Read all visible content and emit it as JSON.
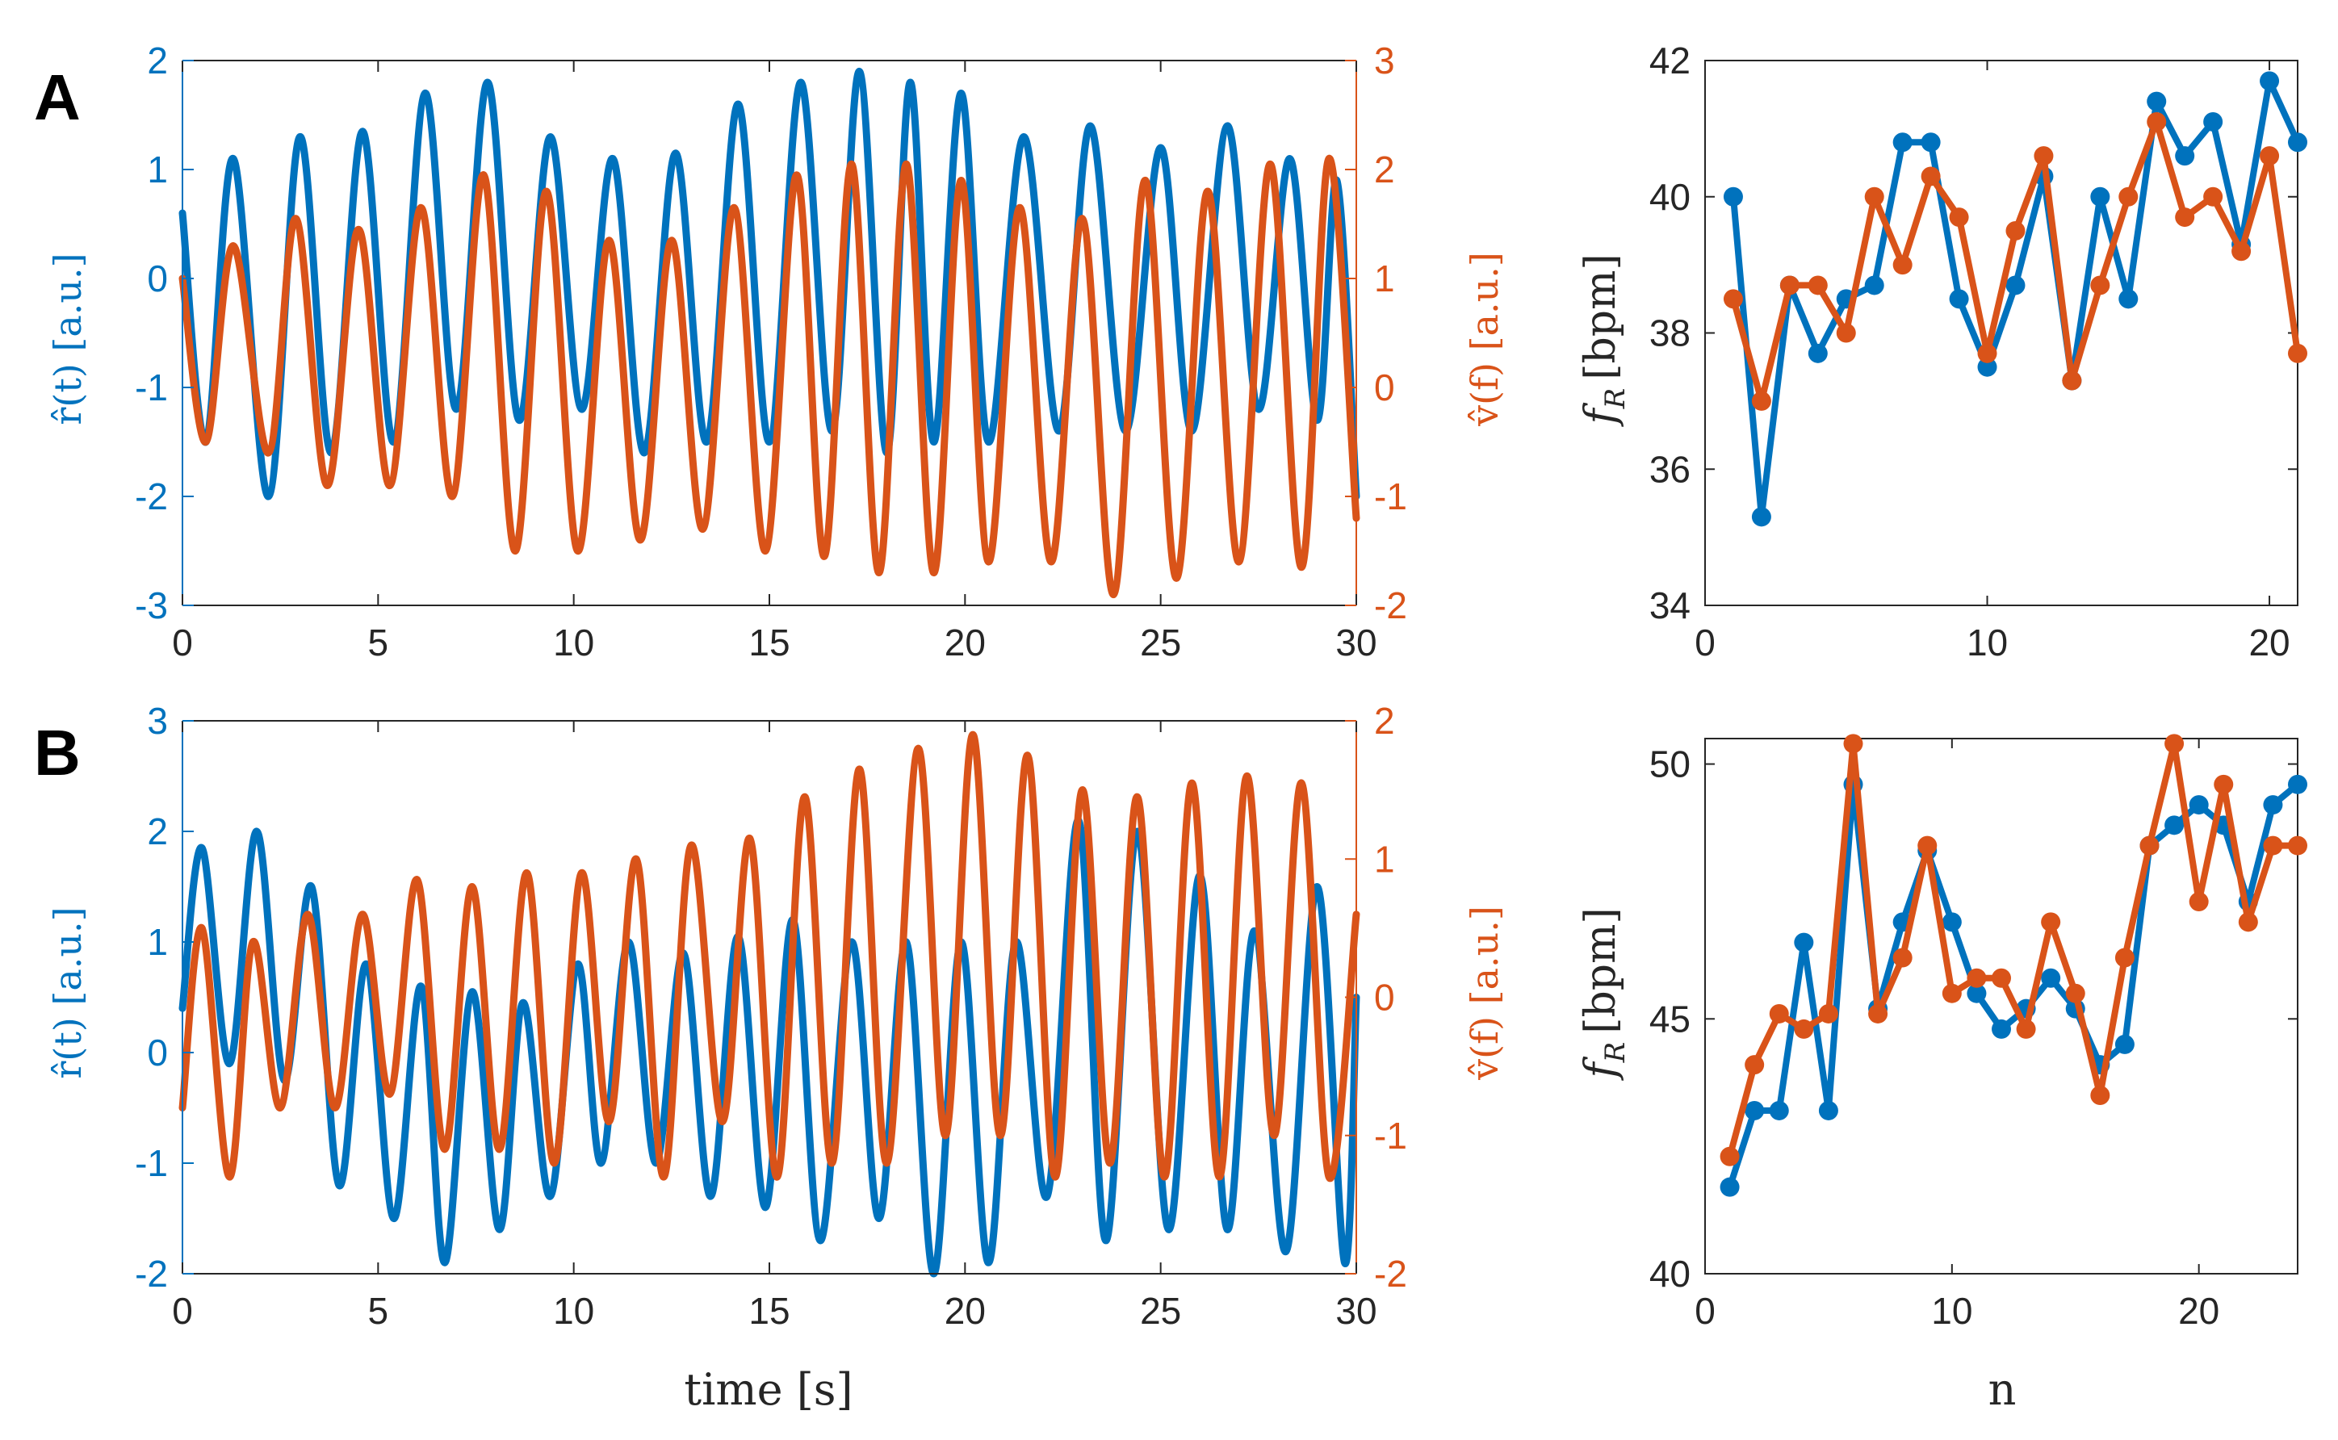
{
  "figure": {
    "panel_labels": [
      "A",
      "B"
    ],
    "xlabel_time": "time [s]",
    "xlabel_n": "n",
    "ylabel_r": "r̂(t) [a.u.]",
    "ylabel_v": "v̂(f) [a.u.]",
    "ylabel_fr": "f_R [bpm]",
    "ylabel_fr_main": "f",
    "ylabel_fr_sub": "R",
    "ylabel_fr_unit": "[bpm]",
    "colors": {
      "blue": "#0072BD",
      "orange": "#D95319",
      "axis": "#262626"
    }
  },
  "chart_data": [
    {
      "id": "A-time",
      "type": "line",
      "x_range": [
        0,
        30
      ],
      "xticks": [
        0,
        5,
        10,
        15,
        20,
        25,
        30
      ],
      "xlabel": "",
      "y_left": {
        "label": "r̂(t) [a.u.]",
        "range": [
          -3,
          2
        ],
        "ticks": [
          -3,
          -2,
          -1,
          0,
          1,
          2
        ]
      },
      "y_right": {
        "label": "v̂(f) [a.u.]",
        "range": [
          -2,
          3
        ],
        "ticks": [
          -2,
          -1,
          0,
          1,
          2,
          3
        ]
      },
      "series": [
        {
          "name": "r(t)",
          "axis": "left",
          "color": "#0072BD",
          "x": [
            0,
            0.6,
            1.3,
            2.2,
            3.0,
            3.8,
            4.6,
            5.4,
            6.2,
            7.0,
            7.8,
            8.6,
            9.4,
            10.2,
            11.0,
            11.8,
            12.6,
            13.4,
            14.2,
            15.0,
            15.8,
            16.6,
            17.3,
            18.0,
            18.6,
            19.2,
            19.9,
            20.6,
            21.5,
            22.4,
            23.2,
            24.1,
            25.0,
            25.8,
            26.7,
            27.5,
            28.3,
            29.0,
            29.5,
            30.0
          ],
          "values": [
            0.6,
            -1.5,
            1.1,
            -2.0,
            1.3,
            -1.6,
            1.35,
            -1.5,
            1.7,
            -1.2,
            1.8,
            -1.3,
            1.3,
            -1.2,
            1.1,
            -1.6,
            1.15,
            -1.5,
            1.6,
            -1.5,
            1.8,
            -1.4,
            1.9,
            -1.6,
            1.8,
            -1.5,
            1.7,
            -1.5,
            1.3,
            -1.4,
            1.4,
            -1.4,
            1.2,
            -1.4,
            1.4,
            -1.2,
            1.1,
            -1.3,
            0.9,
            -2.0
          ]
        },
        {
          "name": "v(f)",
          "axis": "right",
          "color": "#D95319",
          "x": [
            0,
            0.6,
            1.3,
            2.2,
            2.9,
            3.7,
            4.5,
            5.3,
            6.1,
            6.9,
            7.7,
            8.5,
            9.3,
            10.1,
            10.9,
            11.7,
            12.5,
            13.3,
            14.1,
            14.9,
            15.7,
            16.4,
            17.1,
            17.8,
            18.5,
            19.2,
            19.9,
            20.6,
            21.4,
            22.2,
            23.0,
            23.8,
            24.6,
            25.4,
            26.2,
            27.0,
            27.8,
            28.6,
            29.3,
            30.0
          ],
          "values": [
            1.0,
            -0.5,
            1.3,
            -0.6,
            1.55,
            -0.9,
            1.45,
            -0.9,
            1.65,
            -1.0,
            1.95,
            -1.5,
            1.8,
            -1.5,
            1.35,
            -1.4,
            1.35,
            -1.3,
            1.65,
            -1.5,
            1.95,
            -1.55,
            2.05,
            -1.7,
            2.05,
            -1.7,
            1.9,
            -1.6,
            1.65,
            -1.6,
            1.55,
            -1.9,
            1.9,
            -1.75,
            1.8,
            -1.6,
            2.05,
            -1.65,
            2.1,
            -1.2
          ]
        }
      ]
    },
    {
      "id": "A-n",
      "type": "line",
      "x_range": [
        0,
        21
      ],
      "xticks": [
        0,
        10,
        20
      ],
      "xlabel": "",
      "y": {
        "label": "f_R [bpm]",
        "range": [
          34,
          42
        ],
        "ticks": [
          34,
          36,
          38,
          40,
          42
        ]
      },
      "series": [
        {
          "name": "blue",
          "color": "#0072BD",
          "x": [
            1,
            2,
            3,
            4,
            5,
            6,
            7,
            8,
            9,
            10,
            11,
            12,
            13,
            14,
            15,
            16,
            17,
            18,
            19,
            20,
            21
          ],
          "values": [
            40.0,
            35.3,
            38.7,
            37.7,
            38.5,
            38.7,
            40.8,
            40.8,
            38.5,
            37.5,
            38.7,
            40.3,
            37.3,
            40.0,
            38.5,
            41.4,
            40.6,
            41.1,
            39.3,
            41.7,
            40.8
          ]
        },
        {
          "name": "orange",
          "color": "#D95319",
          "x": [
            1,
            2,
            3,
            4,
            5,
            6,
            7,
            8,
            9,
            10,
            11,
            12,
            13,
            14,
            15,
            16,
            17,
            18,
            19,
            20,
            21
          ],
          "values": [
            38.5,
            37.0,
            38.7,
            38.7,
            38.0,
            40.0,
            39.0,
            40.3,
            39.7,
            37.7,
            39.5,
            40.6,
            37.3,
            38.7,
            40.0,
            41.1,
            39.7,
            40.0,
            39.2,
            40.6,
            37.7
          ]
        }
      ]
    },
    {
      "id": "B-time",
      "type": "line",
      "x_range": [
        0,
        30
      ],
      "xticks": [
        0,
        5,
        10,
        15,
        20,
        25,
        30
      ],
      "xlabel": "time [s]",
      "y_left": {
        "label": "r̂(t) [a.u.]",
        "range": [
          -2,
          3
        ],
        "ticks": [
          -2,
          -1,
          0,
          1,
          2,
          3
        ]
      },
      "y_right": {
        "label": "v̂(f) [a.u.]",
        "range": [
          -2,
          2
        ],
        "ticks": [
          -2,
          -1,
          0,
          1,
          2
        ]
      },
      "series": [
        {
          "name": "r(t)",
          "axis": "left",
          "color": "#0072BD",
          "x": [
            0,
            0.5,
            1.2,
            1.9,
            2.6,
            3.3,
            4.0,
            4.7,
            5.4,
            6.1,
            6.7,
            7.4,
            8.1,
            8.7,
            9.4,
            10.1,
            10.7,
            11.4,
            12.1,
            12.8,
            13.5,
            14.2,
            14.9,
            15.6,
            16.3,
            17.1,
            17.8,
            18.5,
            19.2,
            19.9,
            20.6,
            21.3,
            22.1,
            22.9,
            23.6,
            24.4,
            25.2,
            26.0,
            26.7,
            27.4,
            28.2,
            29.0,
            29.7,
            30.0
          ],
          "values": [
            0.4,
            1.85,
            -0.1,
            2.0,
            -0.25,
            1.5,
            -1.2,
            0.8,
            -1.5,
            0.6,
            -1.9,
            0.55,
            -1.6,
            0.45,
            -1.3,
            0.8,
            -1.0,
            1.0,
            -1.0,
            0.9,
            -1.3,
            1.05,
            -1.4,
            1.2,
            -1.7,
            1.0,
            -1.5,
            1.0,
            -2.0,
            1.0,
            -1.9,
            1.0,
            -1.3,
            2.1,
            -1.7,
            2.0,
            -1.6,
            1.6,
            -1.6,
            1.1,
            -1.8,
            1.5,
            -1.9,
            0.5
          ]
        },
        {
          "name": "v(f)",
          "axis": "right",
          "color": "#D95319",
          "x": [
            0,
            0.5,
            1.2,
            1.8,
            2.5,
            3.2,
            3.9,
            4.6,
            5.3,
            6.0,
            6.7,
            7.4,
            8.1,
            8.8,
            9.5,
            10.2,
            10.9,
            11.6,
            12.3,
            13.0,
            13.8,
            14.5,
            15.2,
            15.9,
            16.6,
            17.3,
            18.0,
            18.8,
            19.5,
            20.2,
            20.9,
            21.6,
            22.3,
            23.0,
            23.7,
            24.4,
            25.1,
            25.8,
            26.5,
            27.2,
            27.9,
            28.6,
            29.3,
            30.0
          ],
          "values": [
            -0.8,
            0.5,
            -1.3,
            0.4,
            -0.8,
            0.6,
            -0.8,
            0.6,
            -0.7,
            0.85,
            -1.1,
            0.8,
            -1.1,
            0.9,
            -1.2,
            0.9,
            -0.9,
            1.0,
            -1.3,
            1.1,
            -0.9,
            1.15,
            -1.3,
            1.45,
            -1.2,
            1.65,
            -1.2,
            1.8,
            -1.0,
            1.9,
            -1.0,
            1.75,
            -1.3,
            1.5,
            -1.2,
            1.45,
            -1.3,
            1.55,
            -1.3,
            1.6,
            -1.0,
            1.55,
            -1.3,
            0.6
          ]
        }
      ]
    },
    {
      "id": "B-n",
      "type": "line",
      "x_range": [
        0,
        24
      ],
      "xticks": [
        0,
        10,
        20
      ],
      "xlabel": "n",
      "y": {
        "label": "f_R [bpm]",
        "range": [
          40,
          50.5
        ],
        "ticks": [
          40,
          45,
          50
        ]
      },
      "series": [
        {
          "name": "blue",
          "color": "#0072BD",
          "x": [
            1,
            2,
            3,
            4,
            5,
            6,
            7,
            8,
            9,
            10,
            11,
            12,
            13,
            14,
            15,
            16,
            17,
            18,
            19,
            20,
            21,
            22,
            23,
            24
          ],
          "values": [
            41.7,
            43.2,
            43.2,
            46.5,
            43.2,
            49.6,
            45.2,
            46.9,
            48.3,
            46.9,
            45.5,
            44.8,
            45.2,
            45.8,
            45.2,
            44.1,
            44.5,
            48.4,
            48.8,
            49.2,
            48.8,
            47.3,
            49.2,
            49.6
          ]
        },
        {
          "name": "orange",
          "color": "#D95319",
          "x": [
            1,
            2,
            3,
            4,
            5,
            6,
            7,
            8,
            9,
            10,
            11,
            12,
            13,
            14,
            15,
            16,
            17,
            18,
            19,
            20,
            21,
            22,
            23,
            24
          ],
          "values": [
            42.3,
            44.1,
            45.1,
            44.8,
            45.1,
            50.4,
            45.1,
            46.2,
            48.4,
            45.5,
            45.8,
            45.8,
            44.8,
            46.9,
            45.5,
            43.5,
            46.2,
            48.4,
            50.4,
            47.3,
            49.6,
            46.9,
            48.4,
            48.4
          ]
        }
      ]
    }
  ]
}
